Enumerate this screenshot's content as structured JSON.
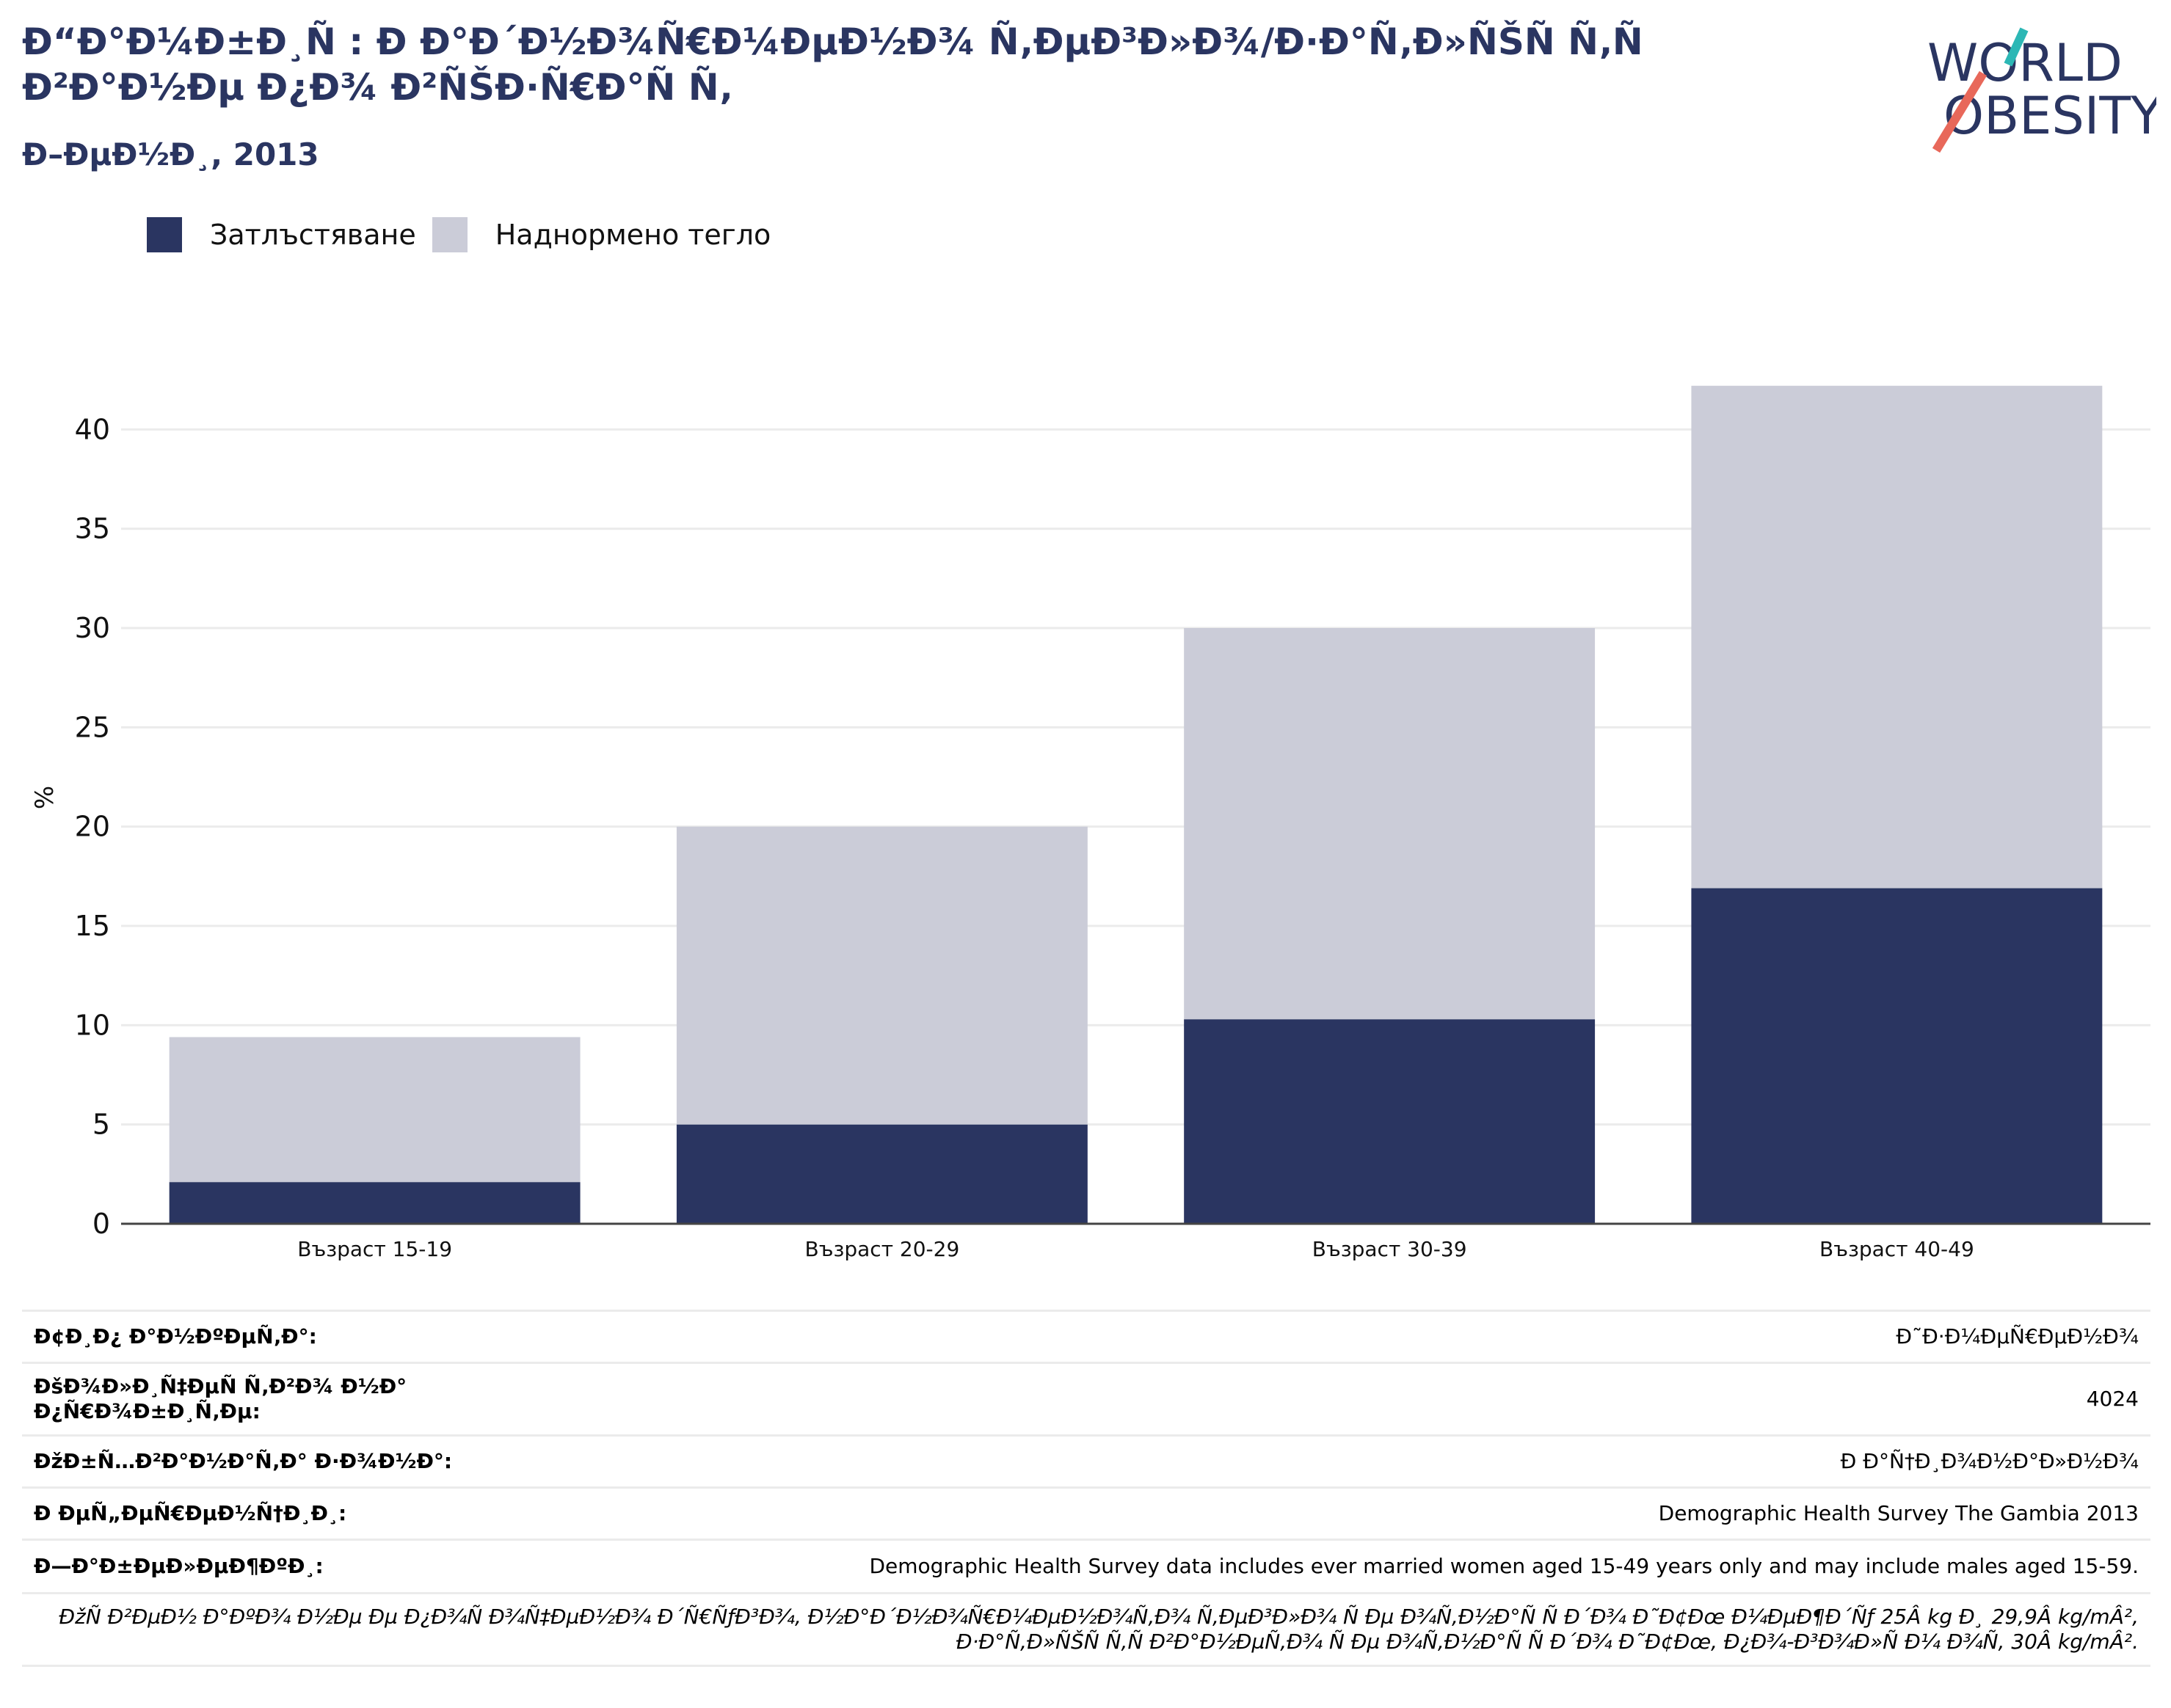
{
  "header": {
    "title": "Ð“Ð°Ð¼Ð±Ð¸Ñ : Ð Ð°Ð´Ð½Ð¾Ñ€Ð¼ÐµÐ½Ð¾ Ñ‚ÐµÐ³Ð»Ð¾/Ð·Ð°Ñ‚Ð»ÑŠÑ Ñ‚Ñ Ð²Ð°Ð½Ðµ Ð¿Ð¾ Ð²ÑŠÐ·Ñ€Ð°Ñ Ñ‚",
    "subtitle": "Ð–ÐµÐ½Ð¸, 2013"
  },
  "logo": {
    "line1": "WORLD",
    "line2": "OBESITY",
    "accent_teal": "#2cb7b5",
    "accent_coral": "#e8685a"
  },
  "legend": {
    "items": [
      {
        "label": "Затлъстяване",
        "color": "#2a3561"
      },
      {
        "label": "Наднормено тегло",
        "color": "#cbccd8"
      }
    ]
  },
  "chart_data": {
    "type": "bar",
    "stacked": true,
    "categories": [
      "Възраст 15-19",
      "Възраст 20-29",
      "Възраст 30-39",
      "Възраст 40-49"
    ],
    "series": [
      {
        "name": "Затлъстяване",
        "color": "#2a3561",
        "values": [
          2.1,
          5.0,
          10.3,
          16.9
        ]
      },
      {
        "name": "Наднормено тегло",
        "color": "#cbccd8",
        "values": [
          7.3,
          15.0,
          19.7,
          25.3
        ]
      }
    ],
    "ylabel": "%",
    "ylim": [
      0,
      45
    ],
    "yticks": [
      0,
      5,
      10,
      15,
      20,
      25,
      30,
      35,
      40
    ],
    "grid": true
  },
  "info_table": [
    {
      "label": "Ð¢Ð¸Ð¿ Ð°Ð½ÐºÐµÑ‚Ð°:",
      "value": "Ð˜Ð·Ð¼ÐµÑ€ÐµÐ½Ð¾"
    },
    {
      "label": "ÐšÐ¾Ð»Ð¸Ñ‡ÐµÑ Ñ‚Ð²Ð¾ Ð½Ð° Ð¿Ñ€Ð¾Ð±Ð¸Ñ‚Ðµ:",
      "value": "4024"
    },
    {
      "label": "ÐžÐ±Ñ…Ð²Ð°Ð½Ð°Ñ‚Ð° Ð·Ð¾Ð½Ð°:",
      "value": "Ð Ð°Ñ†Ð¸Ð¾Ð½Ð°Ð»Ð½Ð¾"
    },
    {
      "label": "Ð ÐµÑ„ÐµÑ€ÐµÐ½Ñ†Ð¸Ð¸:",
      "value": "Demographic Health Survey The Gambia 2013"
    },
    {
      "label": "Ð—Ð°Ð±ÐµÐ»ÐµÐ¶ÐºÐ¸:",
      "value": "Demographic Health Survey data includes ever married women aged 15-49 years only and may include males aged 15-59."
    }
  ],
  "note": "ÐžÑ Ð²ÐµÐ½ Ð°ÐºÐ¾ Ð½Ðµ Ðµ Ð¿Ð¾Ñ Ð¾Ñ‡ÐµÐ½Ð¾ Ð´Ñ€ÑƒÐ³Ð¾, Ð½Ð°Ð´Ð½Ð¾Ñ€Ð¼ÐµÐ½Ð¾Ñ‚Ð¾ Ñ‚ÐµÐ³Ð»Ð¾ Ñ Ðµ Ð¾Ñ‚Ð½Ð°Ñ Ñ  Ð´Ð¾ Ð˜Ð¢Ðœ Ð¼ÐµÐ¶Ð´Ñƒ 25Â kg Ð¸ 29,9Â kg/mÂ², Ð·Ð°Ñ‚Ð»ÑŠÑ Ñ‚Ñ Ð²Ð°Ð½ÐµÑ‚Ð¾ Ñ Ðµ Ð¾Ñ‚Ð½Ð°Ñ Ñ  Ð´Ð¾ Ð˜Ð¢Ðœ, Ð¿Ð¾-Ð³Ð¾Ð»Ñ Ð¼ Ð¾Ñ‚ 30Â kg/mÂ²."
}
